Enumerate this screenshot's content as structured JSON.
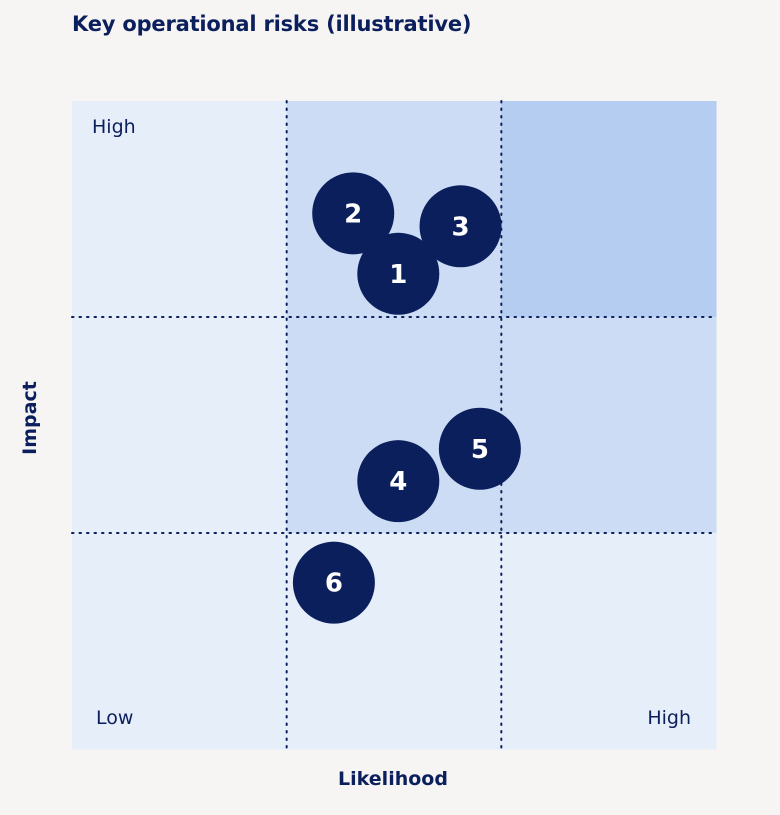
{
  "title": "Key operational risks (illustrative)",
  "chart_data": {
    "type": "scatter",
    "title": "Key operational risks (illustrative)",
    "xlabel": "Likelihood",
    "ylabel": "Impact",
    "xlim": [
      0,
      3
    ],
    "ylim": [
      0,
      3
    ],
    "grid": "3x3 dotted",
    "corner_labels": {
      "top_left": "High",
      "bottom_left": "Low",
      "bottom_right": "High"
    },
    "cell_shading": [
      [
        "#e6eefa",
        "#cbdcf4",
        "#b4cdf1"
      ],
      [
        "#e6eefa",
        "#cbdcf4",
        "#cbdcf4"
      ],
      [
        "#e6eefa",
        "#e6eefa",
        "#e6eefa"
      ]
    ],
    "marker_color": "#0b1f5c",
    "points": [
      {
        "label": "1",
        "x": 1.52,
        "y": 2.2
      },
      {
        "label": "2",
        "x": 1.31,
        "y": 2.48
      },
      {
        "label": "3",
        "x": 1.81,
        "y": 2.42
      },
      {
        "label": "4",
        "x": 1.52,
        "y": 1.24
      },
      {
        "label": "5",
        "x": 1.9,
        "y": 1.39
      },
      {
        "label": "6",
        "x": 1.22,
        "y": 0.77
      }
    ]
  }
}
